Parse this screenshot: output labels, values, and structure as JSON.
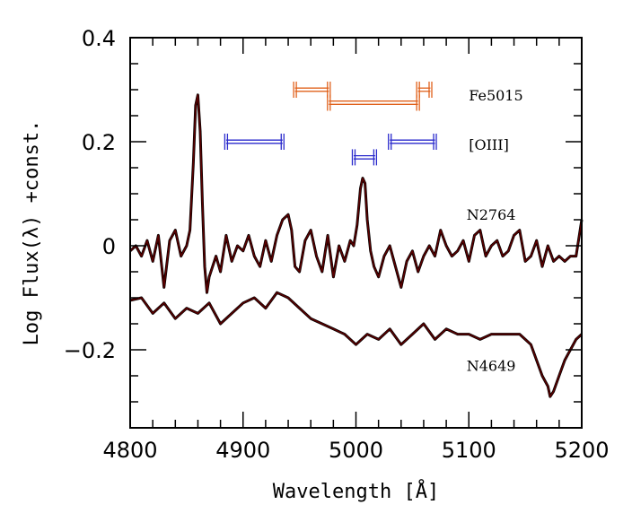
{
  "chart_data": {
    "type": "line",
    "xlabel": "Wavelength [Å]",
    "ylabel": "Log Flux(λ) +const.",
    "xlim": [
      4800,
      5200
    ],
    "ylim": [
      -0.35,
      0.4
    ],
    "x_ticks": [
      {
        "value": 4800,
        "label": "4800"
      },
      {
        "value": 4900,
        "label": "4900"
      },
      {
        "value": 5000,
        "label": "5000"
      },
      {
        "value": 5100,
        "label": "5100"
      },
      {
        "value": 5200,
        "label": "5200"
      }
    ],
    "y_ticks": [
      {
        "value": 0.4,
        "label": "0.4"
      },
      {
        "value": 0.2,
        "label": "0.2"
      },
      {
        "value": 0.0,
        "label": "0"
      },
      {
        "value": -0.2,
        "label": "−0.2"
      }
    ],
    "x_minor_step": 20,
    "y_minor_step": 0.05,
    "grid": false,
    "line_color": "#5a0000",
    "series": [
      {
        "name": "N2764",
        "x": [
          4800,
          4805,
          4810,
          4815,
          4820,
          4825,
          4830,
          4835,
          4840,
          4845,
          4850,
          4853,
          4856,
          4858,
          4860,
          4862,
          4864,
          4866,
          4868,
          4870,
          4873,
          4876,
          4880,
          4885,
          4890,
          4895,
          4900,
          4905,
          4910,
          4915,
          4920,
          4925,
          4930,
          4935,
          4940,
          4943,
          4946,
          4950,
          4955,
          4960,
          4965,
          4970,
          4975,
          4980,
          4985,
          4990,
          4995,
          4998,
          5001,
          5004,
          5006,
          5008,
          5010,
          5013,
          5016,
          5020,
          5025,
          5030,
          5035,
          5040,
          5045,
          5050,
          5055,
          5060,
          5065,
          5070,
          5075,
          5080,
          5085,
          5090,
          5095,
          5100,
          5105,
          5110,
          5115,
          5120,
          5125,
          5130,
          5135,
          5140,
          5145,
          5150,
          5155,
          5160,
          5165,
          5170,
          5175,
          5180,
          5185,
          5190,
          5195,
          5200
        ],
        "y": [
          -0.01,
          0.0,
          -0.02,
          0.01,
          -0.03,
          0.02,
          -0.08,
          0.01,
          0.03,
          -0.02,
          0.0,
          0.03,
          0.16,
          0.27,
          0.29,
          0.22,
          0.08,
          -0.04,
          -0.09,
          -0.06,
          -0.04,
          -0.02,
          -0.05,
          0.02,
          -0.03,
          0.0,
          -0.01,
          0.02,
          -0.02,
          -0.04,
          0.01,
          -0.03,
          0.02,
          0.05,
          0.06,
          0.03,
          -0.04,
          -0.05,
          0.01,
          0.03,
          -0.02,
          -0.05,
          0.02,
          -0.06,
          0.0,
          -0.03,
          0.01,
          0.0,
          0.04,
          0.11,
          0.13,
          0.12,
          0.05,
          -0.01,
          -0.04,
          -0.06,
          -0.02,
          0.0,
          -0.04,
          -0.08,
          -0.03,
          -0.01,
          -0.05,
          -0.02,
          0.0,
          -0.02,
          0.03,
          0.0,
          -0.02,
          -0.01,
          0.01,
          -0.03,
          0.02,
          0.03,
          -0.02,
          0.0,
          0.01,
          -0.02,
          -0.01,
          0.02,
          0.03,
          -0.03,
          -0.02,
          0.01,
          -0.04,
          0.0,
          -0.03,
          -0.02,
          -0.03,
          -0.02,
          -0.02,
          0.05
        ]
      },
      {
        "name": "N4649",
        "x": [
          4800,
          4810,
          4820,
          4830,
          4840,
          4850,
          4860,
          4870,
          4880,
          4890,
          4900,
          4910,
          4920,
          4930,
          4940,
          4950,
          4960,
          4970,
          4980,
          4990,
          5000,
          5010,
          5020,
          5030,
          5040,
          5050,
          5060,
          5070,
          5080,
          5090,
          5100,
          5110,
          5120,
          5130,
          5140,
          5145,
          5150,
          5155,
          5160,
          5165,
          5170,
          5172,
          5175,
          5180,
          5185,
          5190,
          5195,
          5200
        ],
        "y": [
          -0.105,
          -0.1,
          -0.13,
          -0.11,
          -0.14,
          -0.12,
          -0.13,
          -0.11,
          -0.15,
          -0.13,
          -0.11,
          -0.1,
          -0.12,
          -0.09,
          -0.1,
          -0.12,
          -0.14,
          -0.15,
          -0.16,
          -0.17,
          -0.19,
          -0.17,
          -0.18,
          -0.16,
          -0.19,
          -0.17,
          -0.15,
          -0.18,
          -0.16,
          -0.17,
          -0.17,
          -0.18,
          -0.17,
          -0.17,
          -0.17,
          -0.17,
          -0.18,
          -0.19,
          -0.22,
          -0.25,
          -0.27,
          -0.29,
          -0.28,
          -0.25,
          -0.22,
          -0.2,
          -0.18,
          -0.17
        ]
      }
    ],
    "bandpasses": [
      {
        "group": "Fe5015",
        "x0": 4946,
        "x1": 4976,
        "y": 0.3,
        "color": "#e0601a"
      },
      {
        "group": "Fe5015",
        "x0": 4976,
        "x1": 5055,
        "y": 0.275,
        "color": "#e0601a"
      },
      {
        "group": "Fe5015",
        "x0": 5055,
        "x1": 5066,
        "y": 0.3,
        "color": "#e0601a"
      },
      {
        "group": "[OIII]",
        "x0": 4885,
        "x1": 4935,
        "y": 0.2,
        "color": "#2a2acc"
      },
      {
        "group": "[OIII]",
        "x0": 4998,
        "x1": 5017,
        "y": 0.17,
        "color": "#2a2acc"
      },
      {
        "group": "[OIII]",
        "x0": 5030,
        "x1": 5070,
        "y": 0.2,
        "color": "#2a2acc"
      }
    ],
    "annotations": [
      {
        "text": "Fe5015",
        "x": 5100,
        "y": 0.29
      },
      {
        "text": "[OIII]",
        "x": 5100,
        "y": 0.195
      },
      {
        "text": "N2764",
        "x": 5098,
        "y": 0.06
      },
      {
        "text": "N4649",
        "x": 5098,
        "y": -0.23
      }
    ]
  }
}
